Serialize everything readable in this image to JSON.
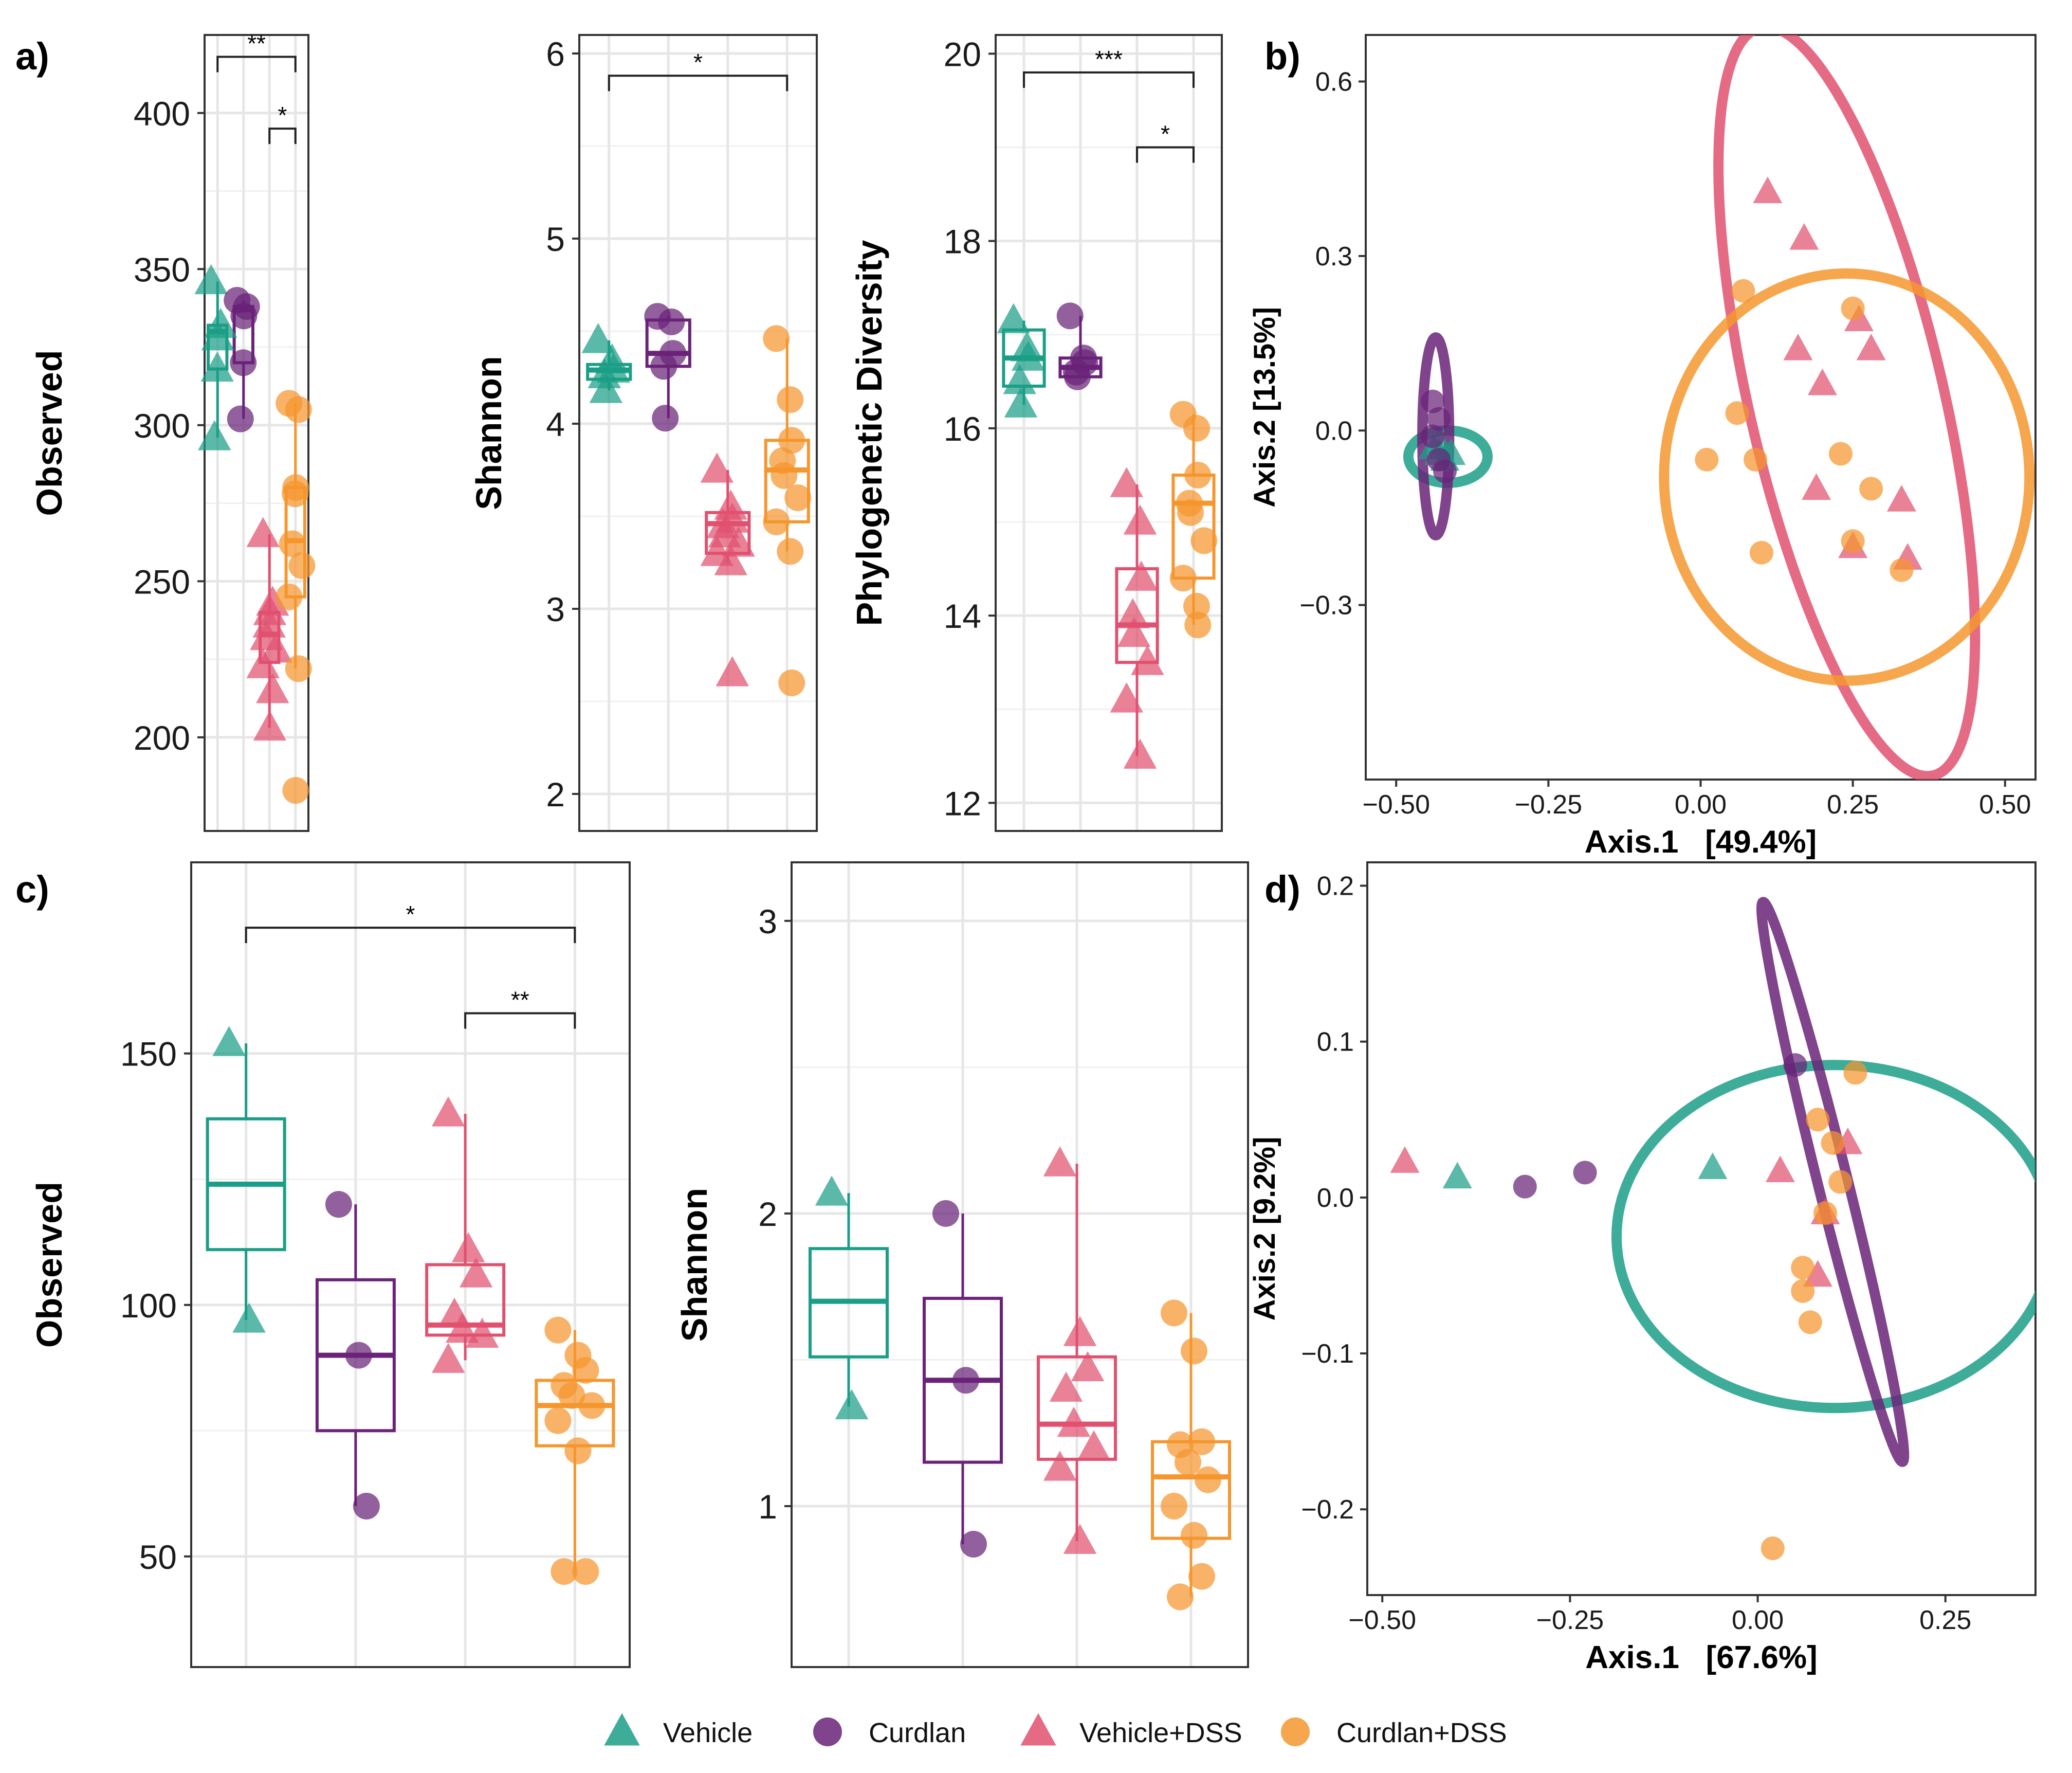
{
  "colors": {
    "Vehicle": "#1b9e87",
    "Curdlan": "#6a2378",
    "Vehicle+DSS": "#e0506f",
    "Curdlan+DSS": "#f5962e"
  },
  "groups": [
    "Vehicle",
    "Curdlan",
    "Vehicle+DSS",
    "Curdlan+DSS"
  ],
  "shapes": [
    "triangle",
    "circle",
    "triangle",
    "circle"
  ],
  "legend": {
    "items": [
      {
        "label": "Vehicle",
        "shape": "triangle",
        "color": "#1b9e87"
      },
      {
        "label": "Curdlan",
        "shape": "circle",
        "color": "#6a2378"
      },
      {
        "label": "Vehicle+DSS",
        "shape": "triangle",
        "color": "#e0506f"
      },
      {
        "label": "Curdlan+DSS",
        "shape": "circle",
        "color": "#f5962e"
      }
    ]
  },
  "panels": {
    "a": {
      "label": "a)"
    },
    "b": {
      "label": "b)"
    },
    "c": {
      "label": "c)"
    },
    "d": {
      "label": "d)"
    }
  },
  "chart_data": [
    {
      "id": "a1",
      "type": "box",
      "ylabel": "Observed",
      "ylim": [
        170,
        425
      ],
      "yticks": [
        200,
        250,
        300,
        350,
        400
      ],
      "boxes": [
        {
          "q1": 318,
          "median": 330,
          "q3": 332,
          "min": 296,
          "max": 346
        },
        {
          "q1": 320,
          "median": 337,
          "q3": 338,
          "min": 302,
          "max": 340
        },
        {
          "q1": 224,
          "median": 233,
          "q3": 240,
          "min": 203,
          "max": 265
        },
        {
          "q1": 245,
          "median": 263,
          "q3": 280,
          "min": 222,
          "max": 307
        }
      ],
      "points": [
        [
          346,
          332,
          328,
          318,
          296
        ],
        [
          340,
          338,
          335,
          320,
          302
        ],
        [
          265,
          243,
          240,
          236,
          232,
          228,
          223,
          215,
          203
        ],
        [
          307,
          305,
          280,
          278,
          262,
          255,
          245,
          222,
          183
        ]
      ],
      "brackets": [
        {
          "from": 0,
          "to": 3,
          "y": 418,
          "label": "**"
        },
        {
          "from": 2,
          "to": 3,
          "y": 395,
          "label": "*"
        }
      ]
    },
    {
      "id": "a2",
      "type": "box",
      "ylabel": "Shannon",
      "ylim": [
        1.8,
        6.1
      ],
      "yticks": [
        2,
        3,
        4,
        5,
        6
      ],
      "boxes": [
        {
          "q1": 4.24,
          "median": 4.29,
          "q3": 4.32,
          "min": 4.18,
          "max": 4.45
        },
        {
          "q1": 4.31,
          "median": 4.38,
          "q3": 4.56,
          "min": 4.03,
          "max": 4.58
        },
        {
          "q1": 3.3,
          "median": 3.46,
          "q3": 3.52,
          "min": 3.25,
          "max": 3.75
        },
        {
          "q1": 3.47,
          "median": 3.75,
          "q3": 3.91,
          "min": 3.31,
          "max": 4.46
        }
      ],
      "points": [
        [
          4.45,
          4.34,
          4.29,
          4.26,
          4.18
        ],
        [
          4.58,
          4.55,
          4.38,
          4.31,
          4.03
        ],
        [
          3.75,
          3.55,
          3.48,
          3.45,
          3.4,
          3.35,
          3.3,
          3.25,
          2.65
        ],
        [
          4.46,
          4.13,
          3.91,
          3.8,
          3.72,
          3.6,
          3.47,
          3.31,
          2.6
        ]
      ],
      "brackets": [
        {
          "from": 0,
          "to": 3,
          "y": 5.88,
          "label": "*"
        }
      ]
    },
    {
      "id": "a3",
      "type": "box",
      "ylabel": "Phylogenetic Diversity",
      "ylim": [
        11.7,
        20.2
      ],
      "yticks": [
        12,
        14,
        16,
        18,
        20
      ],
      "boxes": [
        {
          "q1": 16.45,
          "median": 16.75,
          "q3": 17.05,
          "min": 16.25,
          "max": 17.15
        },
        {
          "q1": 16.55,
          "median": 16.65,
          "q3": 16.75,
          "min": 16.55,
          "max": 17.2
        },
        {
          "q1": 13.5,
          "median": 13.9,
          "q3": 14.5,
          "min": 12.5,
          "max": 15.4
        },
        {
          "q1": 14.4,
          "median": 15.2,
          "q3": 15.5,
          "min": 13.9,
          "max": 16.15
        }
      ],
      "points": [
        [
          17.15,
          16.85,
          16.75,
          16.5,
          16.25
        ],
        [
          17.2,
          16.75,
          16.7,
          16.6,
          16.55
        ],
        [
          15.4,
          15.0,
          14.4,
          14.0,
          13.8,
          13.5,
          13.1,
          12.5
        ],
        [
          16.15,
          16.0,
          15.5,
          15.2,
          15.1,
          14.8,
          14.4,
          14.1,
          13.9
        ]
      ],
      "brackets": [
        {
          "from": 0,
          "to": 3,
          "y": 19.8,
          "label": "***"
        },
        {
          "from": 2,
          "to": 3,
          "y": 19.0,
          "label": "*"
        }
      ]
    },
    {
      "id": "b",
      "type": "scatter",
      "xlabel": "Axis.1   [49.4%]",
      "ylabel": "Axis.2 [13.5%]",
      "xlim": [
        -0.55,
        0.55
      ],
      "ylim": [
        -0.6,
        0.68
      ],
      "xticks": [
        -0.5,
        -0.25,
        0.0,
        0.25,
        0.5
      ],
      "xtick_labels": [
        "−0.50",
        "−0.25",
        "0.00",
        "0.25",
        "0.50"
      ],
      "yticks": [
        -0.3,
        0.0,
        0.3,
        0.6
      ],
      "ytick_labels": [
        "−0.3",
        "0.0",
        "0.3",
        "0.6"
      ],
      "points": [
        [
          [
            -0.44,
            -0.03
          ],
          [
            -0.43,
            -0.04
          ],
          [
            -0.42,
            -0.05
          ],
          [
            -0.43,
            -0.02
          ],
          [
            -0.41,
            -0.04
          ]
        ],
        [
          [
            -0.44,
            0.05
          ],
          [
            -0.43,
            0.02
          ],
          [
            -0.43,
            -0.05
          ],
          [
            -0.42,
            -0.07
          ],
          [
            -0.44,
            -0.01
          ]
        ],
        [
          [
            0.11,
            0.41
          ],
          [
            0.17,
            0.33
          ],
          [
            0.26,
            0.19
          ],
          [
            0.16,
            0.14
          ],
          [
            0.28,
            0.14
          ],
          [
            0.2,
            0.08
          ],
          [
            0.19,
            -0.1
          ],
          [
            0.33,
            -0.12
          ],
          [
            0.25,
            -0.2
          ],
          [
            0.34,
            -0.22
          ]
        ],
        [
          [
            0.07,
            0.24
          ],
          [
            0.25,
            0.21
          ],
          [
            0.06,
            0.03
          ],
          [
            0.01,
            -0.05
          ],
          [
            0.09,
            -0.05
          ],
          [
            0.23,
            -0.04
          ],
          [
            0.28,
            -0.1
          ],
          [
            0.25,
            -0.19
          ],
          [
            0.1,
            -0.21
          ],
          [
            0.33,
            -0.24
          ]
        ]
      ],
      "ellipses": [
        {
          "cx": -0.415,
          "cy": -0.045,
          "rx": 0.065,
          "ry": 0.045,
          "angle": 0
        },
        {
          "cx": -0.435,
          "cy": -0.01,
          "rx": 0.022,
          "ry": 0.17,
          "angle": 0
        },
        {
          "cx": 0.24,
          "cy": 0.05,
          "rx": 0.16,
          "ry": 0.66,
          "angle": 13
        },
        {
          "cx": 0.24,
          "cy": -0.08,
          "rx": 0.3,
          "ry": 0.35,
          "angle": 0
        }
      ]
    },
    {
      "id": "c1",
      "type": "box",
      "ylabel": "Observed",
      "ylim": [
        28,
        188
      ],
      "yticks": [
        50,
        100,
        150
      ],
      "boxes": [
        {
          "q1": 111,
          "median": 124,
          "q3": 137,
          "min": 97,
          "max": 152
        },
        {
          "q1": 75,
          "median": 90,
          "q3": 105,
          "min": 60,
          "max": 120
        },
        {
          "q1": 94,
          "median": 96,
          "q3": 108,
          "min": 89,
          "max": 138
        },
        {
          "q1": 72,
          "median": 80,
          "q3": 85,
          "min": 47,
          "max": 95
        }
      ],
      "points": [
        [
          152,
          97
        ],
        [
          120,
          90,
          60
        ],
        [
          138,
          111,
          106,
          98,
          95,
          94,
          89
        ],
        [
          95,
          90,
          87,
          84,
          82,
          80,
          77,
          71,
          47,
          47
        ]
      ],
      "brackets": [
        {
          "from": 0,
          "to": 3,
          "y": 175,
          "label": "*"
        },
        {
          "from": 2,
          "to": 3,
          "y": 158,
          "label": "**"
        }
      ]
    },
    {
      "id": "c2",
      "type": "box",
      "ylabel": "Shannon",
      "ylim": [
        0.45,
        3.2
      ],
      "yticks": [
        1,
        2,
        3
      ],
      "boxes": [
        {
          "q1": 1.51,
          "median": 1.7,
          "q3": 1.88,
          "min": 1.34,
          "max": 2.07
        },
        {
          "q1": 1.15,
          "median": 1.43,
          "q3": 1.71,
          "min": 0.87,
          "max": 2.0
        },
        {
          "q1": 1.16,
          "median": 1.28,
          "q3": 1.51,
          "min": 0.88,
          "max": 2.17
        },
        {
          "q1": 0.89,
          "median": 1.1,
          "q3": 1.22,
          "min": 0.69,
          "max": 1.66
        }
      ],
      "points": [
        [
          2.07,
          1.34
        ],
        [
          2.0,
          1.43,
          0.87
        ],
        [
          2.17,
          1.59,
          1.47,
          1.4,
          1.28,
          1.2,
          1.13,
          0.88
        ],
        [
          1.66,
          1.53,
          1.22,
          1.21,
          1.15,
          1.09,
          1.0,
          0.9,
          0.76,
          0.69
        ]
      ],
      "brackets": []
    },
    {
      "id": "d",
      "type": "scatter",
      "xlabel": "Axis.1   [67.6%]",
      "ylabel": "Axis.2 [9.2%]",
      "xlim": [
        -0.52,
        0.37
      ],
      "ylim": [
        -0.255,
        0.215
      ],
      "xticks": [
        -0.5,
        -0.25,
        0.0,
        0.25
      ],
      "xtick_labels": [
        "−0.50",
        "−0.25",
        "0.00",
        "0.25"
      ],
      "yticks": [
        -0.2,
        -0.1,
        0.0,
        0.1,
        0.2
      ],
      "ytick_labels": [
        "−0.2",
        "−0.1",
        "0.0",
        "0.1",
        "0.2"
      ],
      "points": [
        [
          [
            -0.4,
            0.013
          ],
          [
            -0.06,
            0.019
          ]
        ],
        [
          [
            -0.31,
            0.007
          ],
          [
            -0.23,
            0.016
          ],
          [
            0.05,
            0.085
          ]
        ],
        [
          [
            -0.47,
            0.023
          ],
          [
            0.03,
            0.017
          ],
          [
            0.09,
            -0.01
          ],
          [
            0.08,
            -0.05
          ],
          [
            0.12,
            0.035
          ]
        ],
        [
          [
            0.1,
            0.035
          ],
          [
            0.06,
            -0.045
          ],
          [
            0.09,
            -0.01
          ],
          [
            0.07,
            -0.08
          ],
          [
            0.13,
            0.08
          ],
          [
            0.08,
            0.05
          ],
          [
            0.11,
            0.01
          ],
          [
            0.02,
            -0.225
          ],
          [
            0.06,
            -0.06
          ]
        ]
      ],
      "ellipses": [
        {
          "cx": 0.102,
          "cy": -0.025,
          "rx": 0.29,
          "ry": 0.11,
          "angle": 0
        },
        {
          "cx": 0.1,
          "cy": 0.01,
          "rx": 0.02,
          "ry": 0.185,
          "angle": 14
        }
      ]
    }
  ]
}
